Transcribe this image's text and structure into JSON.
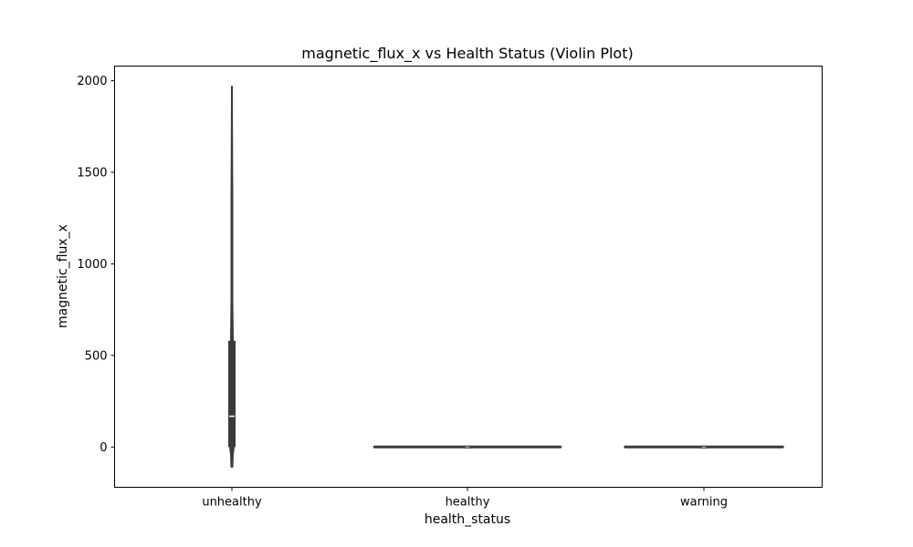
{
  "chart_data": {
    "type": "violin",
    "title": "magnetic_flux_x vs Health Status (Violin Plot)",
    "xlabel": "health_status",
    "ylabel": "magnetic_flux_x",
    "categories": [
      "unhealthy",
      "healthy",
      "warning"
    ],
    "ylim": [
      -220,
      2080
    ],
    "yticks": [
      0,
      500,
      1000,
      1500,
      2000
    ],
    "grid": false,
    "legend": "none",
    "colors": {
      "body": "#3a3a3a",
      "median": "#ffffff",
      "frame": "#000000"
    },
    "series": [
      {
        "category": "unhealthy",
        "min": -110,
        "q1": 0,
        "median": 168,
        "q3": 580,
        "max": 1970,
        "profile": [
          [
            -110,
            2
          ],
          [
            -40,
            3
          ],
          [
            0,
            5
          ],
          [
            170,
            5
          ],
          [
            400,
            4
          ],
          [
            580,
            3
          ],
          [
            800,
            2
          ],
          [
            1340,
            2
          ],
          [
            1600,
            1.5
          ],
          [
            1970,
            1
          ]
        ]
      },
      {
        "category": "healthy",
        "min": 0,
        "q1": 0,
        "median": 0,
        "q3": 0,
        "max": 0,
        "spread_halfwidth": 0.4
      },
      {
        "category": "warning",
        "min": 0,
        "q1": 0,
        "median": 0,
        "q3": 0,
        "max": 0,
        "spread_halfwidth": 0.34
      }
    ]
  }
}
